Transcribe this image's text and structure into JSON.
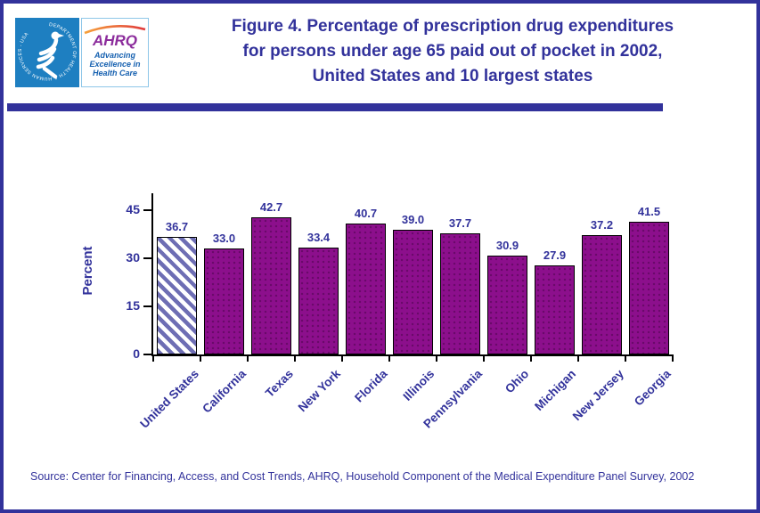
{
  "logo": {
    "seal_text": "DEPARTMENT OF HEALTH & HUMAN SERVICES - USA",
    "acronym": "AHRQ",
    "tagline_lines": [
      "Advancing",
      "Excellence in",
      "Health Care"
    ]
  },
  "header": {
    "title_lines": [
      "Figure 4. Percentage of prescription drug expenditures",
      "for persons under age 65 paid out of pocket in 2002,",
      "United States and 10 largest states"
    ]
  },
  "chart_data": {
    "type": "bar",
    "categories": [
      "United States",
      "California",
      "Texas",
      "New York",
      "Florida",
      "Illinois",
      "Pennsylvania",
      "Ohio",
      "Michigan",
      "New Jersey",
      "Georgia"
    ],
    "values": [
      36.7,
      33.0,
      42.7,
      33.4,
      40.7,
      39.0,
      37.7,
      30.9,
      27.9,
      37.2,
      41.5
    ],
    "value_labels": [
      "36.7",
      "33.0",
      "42.7",
      "33.4",
      "40.7",
      "39.0",
      "37.7",
      "30.9",
      "27.9",
      "37.2",
      "41.5"
    ],
    "title": "Figure 4. Percentage of prescription drug expenditures for persons under age 65 paid out of pocket in 2002, United States and 10 largest states",
    "xlabel": "",
    "ylabel": "Percent",
    "yticks": [
      0,
      15,
      30,
      45
    ],
    "ylim": [
      0,
      49.7
    ],
    "grid": false,
    "legend": "none",
    "bar_color": "#8c0f8c",
    "highlight_category": "United States",
    "highlight_style": "hatched",
    "hatch_stripe_color": "#6e6eb4"
  },
  "footer": {
    "source": "Source: Center for Financing, Access, and Cost Trends, AHRQ, Household Component of the Medical Expenditure Panel Survey, 2002"
  },
  "colors": {
    "navy": "#32329b",
    "bar_purple": "#8c0f8c",
    "hatch_blue": "#6e6eb4",
    "hhs_blue": "#1e7fc1",
    "ahrq_purple": "#8c2c9c",
    "tagline_blue": "#1560b0",
    "arc_orange": "#f6a23b",
    "arc_red": "#e03a3c"
  }
}
